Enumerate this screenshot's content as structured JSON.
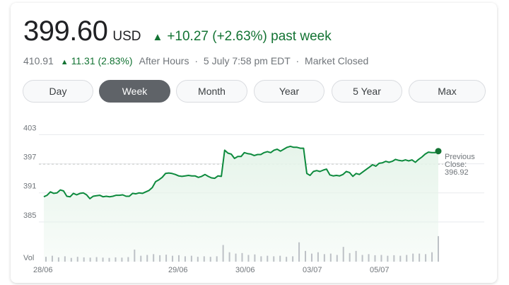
{
  "quote": {
    "price": "399.60",
    "currency": "USD",
    "change_arrow": "▲",
    "change_text": "+10.27 (+2.63%) past week",
    "after_hours_price": "410.91",
    "after_hours_change": "11.31 (2.83%)",
    "after_hours_label": "After Hours",
    "separator": "·",
    "timestamp": "5 July 7:58 pm EDT",
    "market_status": "Market Closed"
  },
  "tabs": [
    {
      "label": "Day",
      "active": false
    },
    {
      "label": "Week",
      "active": true
    },
    {
      "label": "Month",
      "active": false
    },
    {
      "label": "Year",
      "active": false
    },
    {
      "label": "5 Year",
      "active": false
    },
    {
      "label": "Max",
      "active": false
    }
  ],
  "colors": {
    "up": "#137333",
    "line": "#0d8a3d",
    "area": "#e6f4ea",
    "grid": "#e8eaed",
    "volume": "#bdc1c6"
  },
  "chart_data": {
    "type": "area",
    "ylim": [
      382.5,
      403.5
    ],
    "y_ticks": [
      "403",
      "397",
      "391",
      "385"
    ],
    "x_ticks": [
      "28/06",
      "29/06",
      "30/06",
      "03/07",
      "05/07"
    ],
    "volume_label": "Vol",
    "previous_close": {
      "label_line1": "Previous",
      "label_line2": "Close:",
      "value": 396.92,
      "value_text": "396.92"
    },
    "last_value": 399.6,
    "series": [
      {
        "values": [
          390.2,
          390.5,
          391.2,
          390.9,
          391.0,
          391.6,
          391.4,
          390.3,
          390.2,
          390.9,
          390.6,
          390.9,
          391.0,
          390.6,
          389.8,
          390.3,
          390.4,
          390.5,
          390.2,
          390.3,
          390.2,
          390.3,
          390.5,
          390.5,
          390.6,
          390.3,
          390.3,
          390.9,
          390.8,
          391.0,
          390.9,
          391.2,
          391.5,
          392.1,
          393.3,
          393.7,
          394.2,
          395.0,
          395.1,
          395.0,
          394.8,
          394.5,
          394.4,
          394.5,
          394.6,
          394.5,
          394.5,
          394.2,
          394.4,
          394.8,
          394.4,
          394.1,
          394.0,
          394.5,
          394.4,
          399.8,
          399.2,
          399.0,
          398.1,
          398.5,
          398.5,
          399.3,
          399.1,
          399.0,
          398.7,
          398.9,
          398.9,
          399.3,
          399.5,
          399.3,
          399.8,
          400.0,
          399.6,
          400.0,
          400.4,
          400.6,
          400.4,
          400.4,
          400.2,
          400.2,
          395.0,
          394.6,
          395.4,
          395.6,
          395.4,
          395.7,
          395.9,
          394.7,
          394.5,
          394.6,
          394.5,
          394.8,
          395.4,
          395.2,
          394.4,
          395.0,
          394.8,
          395.3,
          395.8,
          396.3,
          396.8,
          396.5,
          397.1,
          397.2,
          397.5,
          397.3,
          397.5,
          397.9,
          397.7,
          397.6,
          397.8,
          397.6,
          397.8,
          397.3,
          397.9,
          398.4,
          399.0,
          399.4,
          399.3,
          399.3,
          399.6
        ]
      }
    ],
    "volume": [
      0.18,
      0.22,
      0.16,
      0.2,
      0.14,
      0.18,
      0.16,
      0.15,
      0.17,
      0.15,
      0.14,
      0.16,
      0.15,
      0.17,
      0.45,
      0.22,
      0.25,
      0.28,
      0.24,
      0.26,
      0.22,
      0.24,
      0.2,
      0.22,
      0.18,
      0.2,
      0.18,
      0.2,
      0.62,
      0.35,
      0.3,
      0.32,
      0.25,
      0.27,
      0.2,
      0.22,
      0.2,
      0.22,
      0.18,
      0.2,
      0.72,
      0.4,
      0.3,
      0.35,
      0.28,
      0.3,
      0.25,
      0.55,
      0.32,
      0.4,
      0.25,
      0.28,
      0.24,
      0.25,
      0.22,
      0.24,
      0.22,
      0.25,
      0.3,
      0.3,
      0.28,
      0.35,
      0.95
    ]
  }
}
